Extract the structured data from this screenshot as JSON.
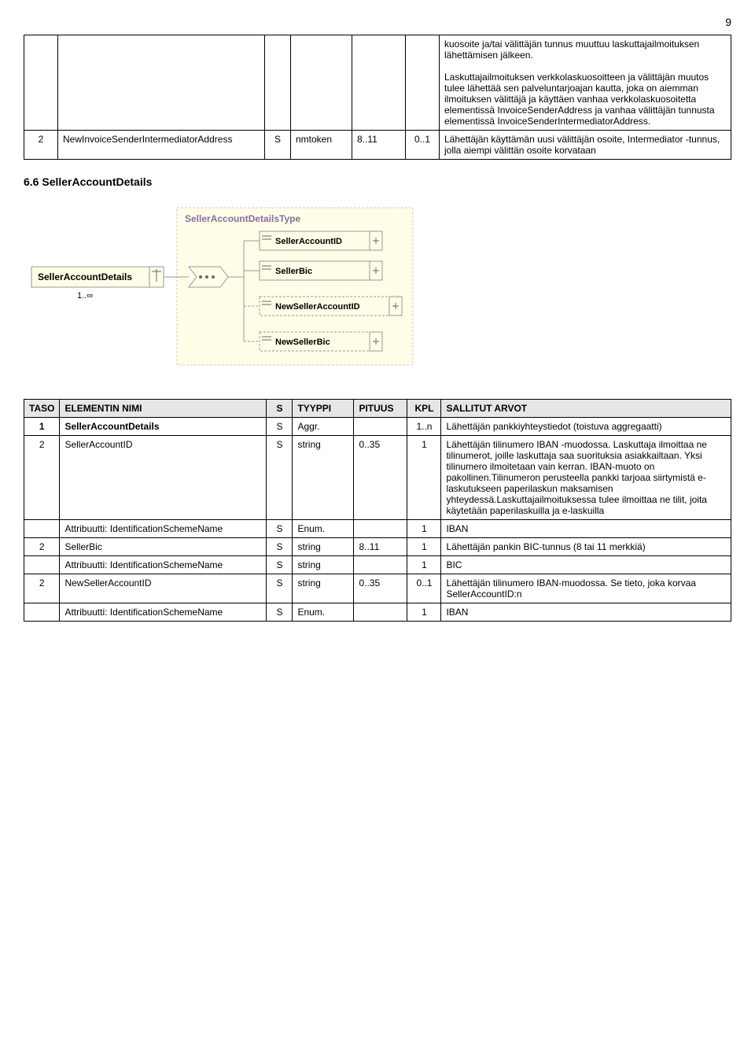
{
  "page_number": "9",
  "table1": {
    "row1_desc": "kuosoite ja/tai välittäjän tunnus muuttuu laskuttajailmoituksen lähettämisen jälkeen.\n\nLaskuttajailmoituksen verkkolaskuosoitteen ja välittäjän muutos tulee lähettää sen palveluntarjoajan kautta, joka on aiemman ilmoituksen välittäjä ja käyttäen vanhaa verkkolaskuosoitetta elementissä InvoiceSenderAddress ja vanhaa välittäjän tunnusta elementissä InvoiceSenderIntermediatorAddress.",
    "row2": {
      "level": "2",
      "name": "NewInvoiceSenderIntermediatorAddress",
      "s": "S",
      "type": "nmtoken",
      "len": "8..11",
      "kpl": "0..1",
      "desc": "Lähettäjän käyttämän uusi välittäjän osoite, Intermediator -tunnus, jolla aiempi välittän osoite korvataan"
    }
  },
  "section_heading": "6.6 SellerAccountDetails",
  "diagram": {
    "root_label": "SellerAccountDetails",
    "root_card": "1..∞",
    "type_box": "SellerAccountDetailsType",
    "children": [
      "SellerAccountID",
      "SellerBic",
      "NewSellerAccountID",
      "NewSellerBic"
    ]
  },
  "table2": {
    "headers": [
      "TASO",
      "ELEMENTIN NIMI",
      "S",
      "TYYPPI",
      "PITUUS",
      "KPL",
      "SALLITUT ARVOT"
    ],
    "rows": [
      {
        "level": "1",
        "name": "SellerAccountDetails",
        "s": "S",
        "type": "Aggr.",
        "len": "",
        "kpl": "1..n",
        "desc": "Lähettäjän  pankkiyhteystiedot (toistuva aggregaatti)",
        "bold": true
      },
      {
        "level": "2",
        "name": "SellerAccountID",
        "s": "S",
        "type": "string",
        "len": "0..35",
        "kpl": "1",
        "desc": "Lähettäjän tilinumero IBAN -muodossa. Laskuttaja ilmoittaa ne tilinumerot, joille laskuttaja saa suorituksia asiakkailtaan. Yksi tilinumero ilmoitetaan vain kerran. IBAN-muoto on pakollinen.Tilinumeron perusteella pankki tarjoaa siirtymistä e-laskutukseen paperilaskun maksamisen yhteydessä.Laskuttajailmoituksessa tulee ilmoittaa ne tilit, joita käytetään paperilaskuilla ja e-laskuilla"
      },
      {
        "level": "",
        "name": "Attribuutti: IdentificationSchemeName",
        "s": "S",
        "type": "Enum.",
        "len": "",
        "kpl": "1",
        "desc": "IBAN"
      },
      {
        "level": "2",
        "name": "SellerBic",
        "s": "S",
        "type": "string",
        "len": "8..11",
        "kpl": "1",
        "desc": "Lähettäjän pankin BIC-tunnus (8 tai 11 merkkiä)"
      },
      {
        "level": "",
        "name": "Attribuutti: IdentificationSchemeName",
        "s": "S",
        "type": "string",
        "len": "",
        "kpl": "1",
        "desc": "BIC"
      },
      {
        "level": "2",
        "name": "NewSellerAccountID",
        "s": "S",
        "type": "string",
        "len": "0..35",
        "kpl": "0..1",
        "desc": "Lähettäjän tilinumero IBAN-muodossa. Se tieto, joka korvaa SellerAccountID:n"
      },
      {
        "level": "",
        "name": "Attribuutti: IdentificationSchemeName",
        "s": "S",
        "type": "Enum.",
        "len": "",
        "kpl": "1",
        "desc": "IBAN"
      }
    ]
  }
}
